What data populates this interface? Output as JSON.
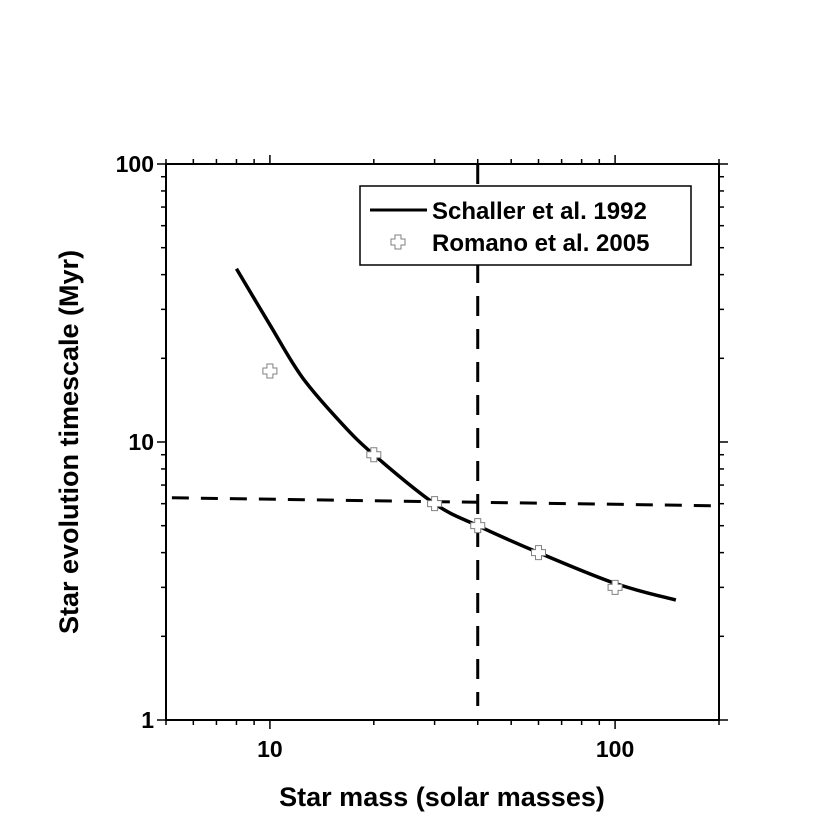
{
  "chart_data": {
    "type": "line",
    "title": "",
    "xlabel": "Star mass (solar masses)",
    "ylabel": "Star evolution timescale (Myr)",
    "xscale": "log",
    "yscale": "log",
    "xlim": [
      5,
      200
    ],
    "ylim": [
      1,
      100
    ],
    "x_ticks": [
      10,
      100
    ],
    "x_tick_labels": [
      "10",
      "100"
    ],
    "y_ticks": [
      1,
      10,
      100
    ],
    "y_tick_labels": [
      "1",
      "10",
      "100"
    ],
    "grid": false,
    "legend_position": "upper right",
    "series": [
      {
        "name": "Schaller et al. 1992",
        "style": "solid-line",
        "color": "#000000",
        "x": [
          8,
          10,
          12.4,
          16.1,
          20,
          30,
          40,
          60,
          100,
          150
        ],
        "y": [
          42,
          26.4,
          17.1,
          11.7,
          9.0,
          6.0,
          5.0,
          4.0,
          3.1,
          2.7
        ]
      },
      {
        "name": "Romano et al. 2005",
        "style": "open-cross-marker",
        "color": "#808080",
        "x": [
          10,
          20,
          30,
          40,
          60,
          100
        ],
        "y": [
          18,
          9,
          6,
          5,
          4,
          3
        ]
      }
    ],
    "annotations": [
      {
        "type": "vertical-dashed-line",
        "x": 40,
        "y_range": [
          1,
          100
        ]
      },
      {
        "type": "horizontal-dashed-line",
        "x_range": [
          5.2,
          190
        ],
        "y_start": 6.3,
        "y_end": 5.9
      }
    ]
  },
  "legend": {
    "items": [
      {
        "label": "Schaller et al. 1992",
        "symbol": "line"
      },
      {
        "label": "Romano et al. 2005",
        "symbol": "cross-marker"
      }
    ]
  }
}
